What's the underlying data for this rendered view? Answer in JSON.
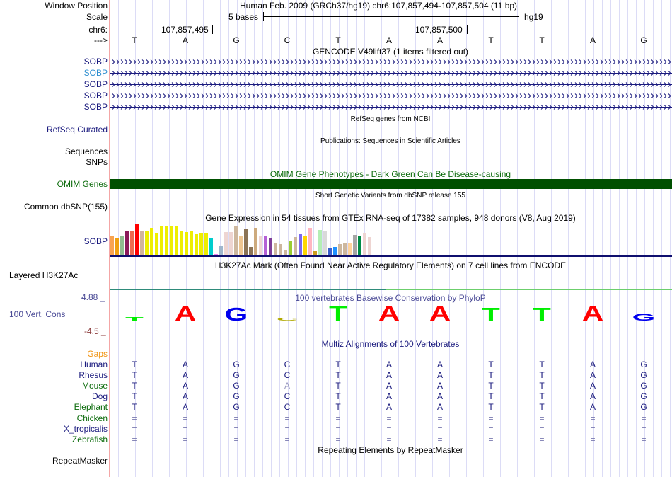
{
  "header": {
    "window_position_label": "Window Position",
    "window_position_text": "Human Feb. 2009 (GRCh37/hg19)   chr6:107,857,494-107,857,504 (11 bp)",
    "scale_label": "Scale",
    "scale_text": "5 bases",
    "scale_db": "hg19",
    "chrom_label": "chr6:",
    "coord_ticks": [
      "107,857,495",
      "107,857,500"
    ],
    "strand_label": "--->",
    "bases": [
      "T",
      "A",
      "G",
      "C",
      "T",
      "A",
      "A",
      "T",
      "T",
      "A",
      "G"
    ]
  },
  "tracks": {
    "gencode": {
      "title": "GENCODE V49lift37 (1 items filtered out)",
      "genes": [
        "SOBP",
        "SOBP",
        "SOBP",
        "SOBP",
        "SOBP"
      ],
      "colors": [
        "#1a1a7e",
        "#2f8fd0",
        "#1a1a7e",
        "#1a1a7e",
        "#1a1a7e"
      ]
    },
    "refseq": {
      "title": "RefSeq genes from NCBI",
      "label": "RefSeq Curated"
    },
    "publications": {
      "title": "Publications: Sequences in Scientific Articles",
      "label1": "Sequences",
      "label2": "SNPs"
    },
    "omim": {
      "title": "OMIM Gene Phenotypes - Dark Green Can Be Disease-causing",
      "label": "OMIM Genes",
      "color": "#005000"
    },
    "dbsnp": {
      "title": "Short Genetic Variants from dbSNP release 155",
      "label": "Common dbSNP(155)"
    },
    "gtex": {
      "title": "Gene Expression in 54 tissues from GTEx RNA-seq of 17382 samples, 948 donors (V8, Aug 2019)",
      "label": "SOBP",
      "values": [
        27,
        24,
        28,
        34,
        35,
        45,
        35,
        35,
        39,
        32,
        42,
        41,
        41,
        41,
        35,
        33,
        35,
        30,
        32,
        32,
        24,
        2,
        13,
        33,
        33,
        41,
        27,
        38,
        12,
        39,
        28,
        27,
        25,
        17,
        16,
        8,
        21,
        26,
        31,
        27,
        39,
        7,
        36,
        34,
        10,
        12,
        16,
        17,
        18,
        29,
        28,
        32,
        26,
        1
      ],
      "colors": [
        "#f9a350",
        "#f0a010",
        "#8fbc8f",
        "#8b1a5a",
        "#ee6a50",
        "#ff0000",
        "#d2b49c",
        "#eeee00",
        "#eeee00",
        "#eeee00",
        "#eeee00",
        "#eeee00",
        "#eeee00",
        "#eeee00",
        "#eeee00",
        "#eeee00",
        "#eeee00",
        "#eeee00",
        "#eeee00",
        "#eeee00",
        "#00cdcd",
        "#ee82ee",
        "#9fb6cd",
        "#eed5d2",
        "#eed5d2",
        "#cdb79e",
        "#eec591",
        "#8b7355",
        "#8b7355",
        "#cdaa7d",
        "#eed5d2",
        "#b460d6",
        "#7d3c98",
        "#cdb79e",
        "#cdb79e",
        "#cdb79e",
        "#9acd32",
        "#cdb79e",
        "#7b68ee",
        "#ffd700",
        "#ffb6c1",
        "#cd9b1d",
        "#b4eeb4",
        "#d9d9d9",
        "#3a5fcd",
        "#1e90ff",
        "#cdb79e",
        "#cdb79e",
        "#ffd39b",
        "#a6a6a6",
        "#008b45",
        "#eed5d2",
        "#eed5d2",
        "#eed5d2"
      ]
    },
    "h3k27ac": {
      "title": "H3K27Ac Mark (Often Found Near Active Regulatory Elements) on 7 cell lines from ENCODE",
      "label": "Layered H3K27Ac"
    },
    "phylop": {
      "title": "100 vertebrates Basewise Conservation by PhyloP",
      "label": "100 Vert. Cons",
      "max": "4.88 _",
      "min": "-4.5 _",
      "scores": [
        0.6,
        2.5,
        2.2,
        0.5,
        2.6,
        2.5,
        2.5,
        2.2,
        2.2,
        2.6,
        1.2
      ],
      "letter_colors": {
        "A": "#ff0000",
        "C": "#b0a800",
        "G": "#0000ee",
        "T": "#00ee00"
      }
    },
    "multiz": {
      "title": "Multiz Alignments of 100 Vertebrates",
      "gaps_label": "Gaps",
      "species": [
        {
          "name": "Human",
          "color": "#1a1a7e",
          "seq": [
            "T",
            "A",
            "G",
            "C",
            "T",
            "A",
            "A",
            "T",
            "T",
            "A",
            "G"
          ]
        },
        {
          "name": "Rhesus",
          "color": "#1a1a7e",
          "seq": [
            "T",
            "A",
            "G",
            "C",
            "T",
            "A",
            "A",
            "T",
            "T",
            "A",
            "G"
          ]
        },
        {
          "name": "Mouse",
          "color": "#0b6b0b",
          "seq": [
            "T",
            "A",
            "G",
            "A",
            "T",
            "A",
            "A",
            "T",
            "T",
            "A",
            "G"
          ],
          "mismatch": [
            3
          ]
        },
        {
          "name": "Dog",
          "color": "#1a1a7e",
          "seq": [
            "T",
            "A",
            "G",
            "C",
            "T",
            "A",
            "A",
            "T",
            "T",
            "A",
            "G"
          ]
        },
        {
          "name": "Elephant",
          "color": "#0b6b0b",
          "seq": [
            "T",
            "A",
            "G",
            "C",
            "T",
            "A",
            "A",
            "T",
            "T",
            "A",
            "G"
          ]
        },
        {
          "name": "Chicken",
          "color": "#0b6b0b",
          "seq": [
            "=",
            "=",
            "=",
            "=",
            "=",
            "=",
            "=",
            "=",
            "=",
            "=",
            "="
          ]
        },
        {
          "name": "X_tropicalis",
          "color": "#1a1a7e",
          "seq": [
            "=",
            "=",
            "=",
            "=",
            "=",
            "=",
            "=",
            "=",
            "=",
            "=",
            "="
          ]
        },
        {
          "name": "Zebrafish",
          "color": "#0b6b0b",
          "seq": [
            "=",
            "=",
            "=",
            "=",
            "=",
            "=",
            "=",
            "=",
            "=",
            "=",
            "="
          ]
        }
      ]
    },
    "repeatmasker": {
      "title": "Repeating Elements by RepeatMasker",
      "label": "RepeatMasker"
    }
  }
}
